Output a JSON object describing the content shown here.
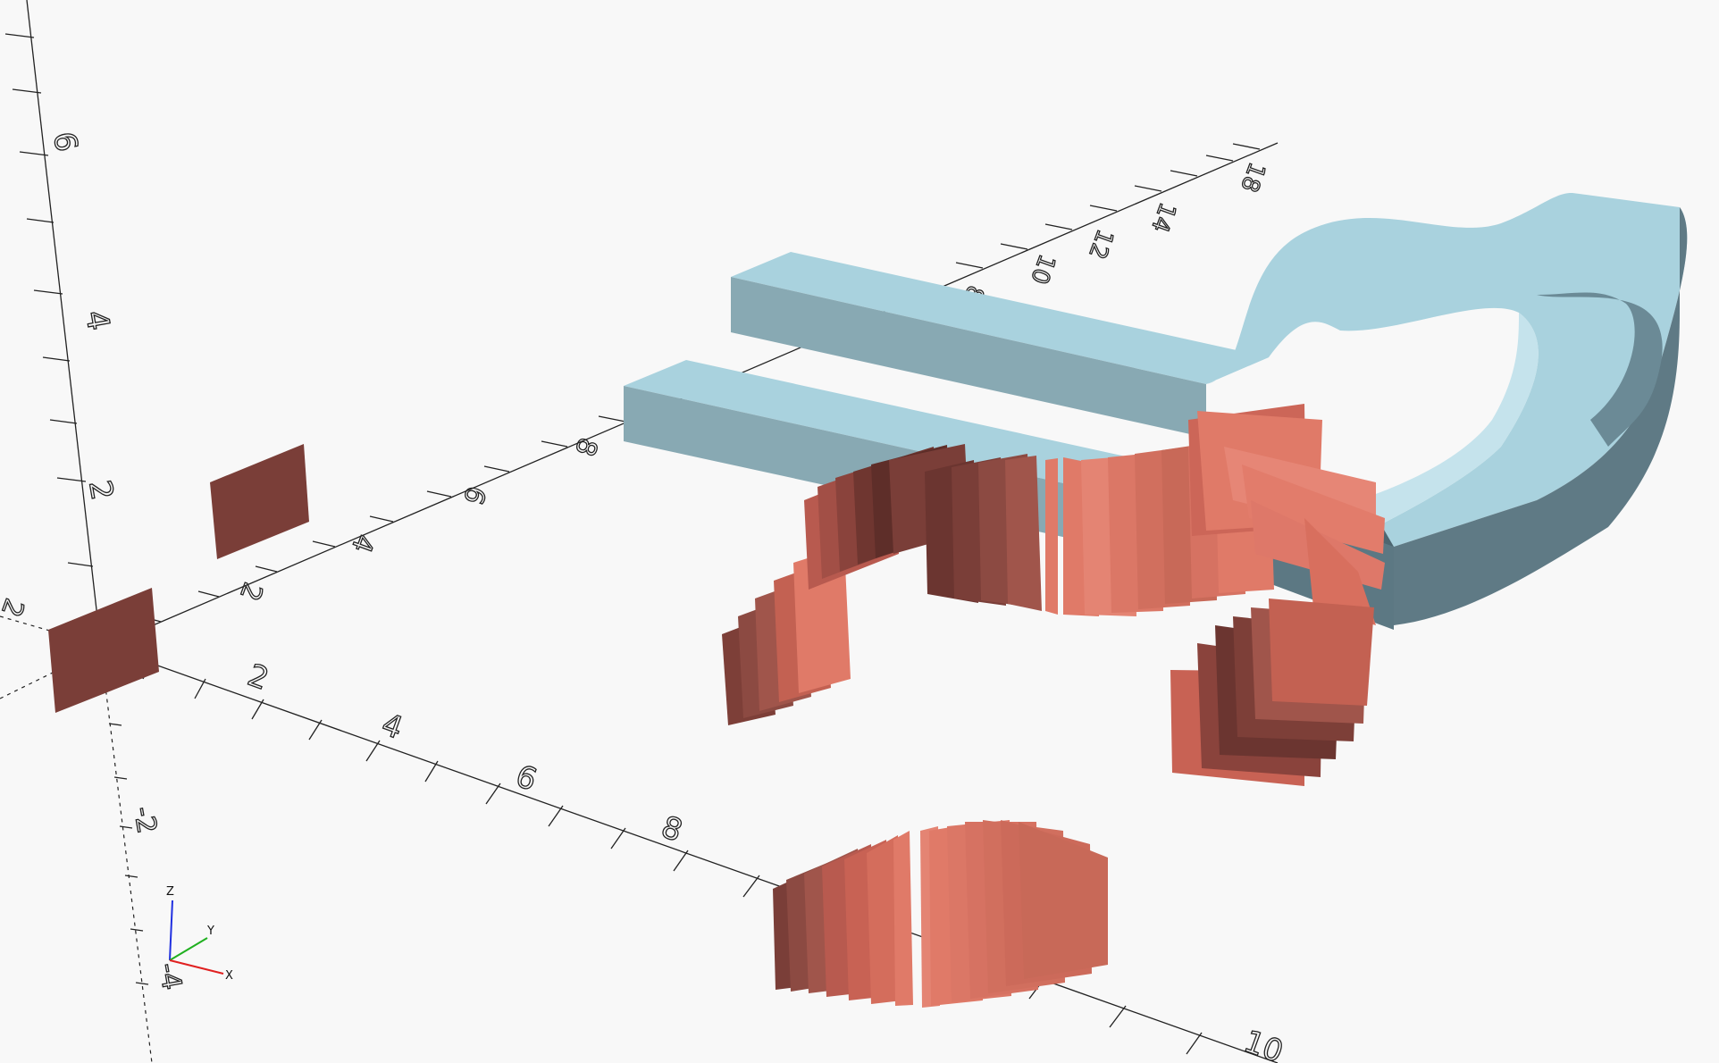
{
  "viewport": {
    "background": "#f8f8f8",
    "axis_color": "#222222",
    "solid_color": "#a7cfdb",
    "solid_dark": "#5e7580",
    "pane_color": "#e07a68",
    "pane_dark": "#7a3e38"
  },
  "axis_labels": {
    "z_axis": [
      "6",
      "4",
      "2"
    ],
    "x_axis": [
      "2",
      "4",
      "6",
      "8",
      "10"
    ],
    "x_axis_back": [
      "8",
      "10",
      "12",
      "14",
      "18"
    ],
    "y_axis": [
      "2",
      "4",
      "6",
      "8"
    ],
    "y_axis_negative": [
      "-2",
      "-4"
    ],
    "far_corner": [
      "2"
    ]
  },
  "gizmo": {
    "x_label": "X",
    "y_label": "Y",
    "z_label": "Z",
    "x_color": "#e02020",
    "y_color": "#20b020",
    "z_color": "#2030e0"
  }
}
